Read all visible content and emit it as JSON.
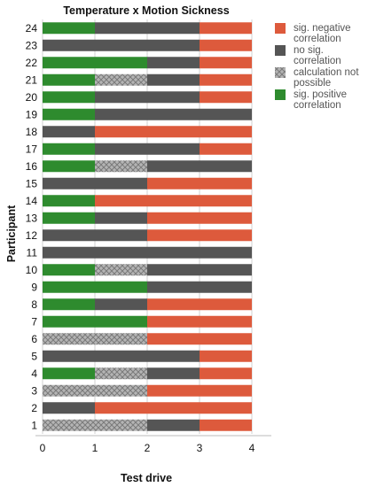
{
  "chart_data": {
    "type": "bar",
    "orientation": "horizontal",
    "stacked": true,
    "title": "Temperature x Motion Sickness",
    "xlabel": "Test drive",
    "ylabel": "Participant",
    "xlim": [
      0,
      4
    ],
    "xticks": [
      "0",
      "1",
      "2",
      "3",
      "4"
    ],
    "grid": "vertical",
    "legend_position": "right",
    "legend": [
      {
        "key": "neg",
        "label_lines": [
          "sig. negative",
          "correlation"
        ]
      },
      {
        "key": "nosig",
        "label_lines": [
          "no sig.",
          "correlation"
        ]
      },
      {
        "key": "na",
        "label_lines": [
          "calculation not",
          "possible"
        ]
      },
      {
        "key": "pos",
        "label_lines": [
          "sig. positive",
          "correlation"
        ]
      }
    ],
    "colors": {
      "pos": "#2e8b2e",
      "nosig": "#555555",
      "na": "#a9a9a9",
      "neg": "#dd5a3c"
    },
    "categories": [
      "1",
      "2",
      "3",
      "4",
      "5",
      "6",
      "7",
      "8",
      "9",
      "10",
      "11",
      "12",
      "13",
      "14",
      "15",
      "16",
      "17",
      "18",
      "19",
      "20",
      "21",
      "22",
      "23",
      "24"
    ],
    "rows": [
      [
        "na",
        "na",
        "nosig",
        "neg"
      ],
      [
        "nosig",
        "neg",
        "neg",
        "neg"
      ],
      [
        "na",
        "na",
        "neg",
        "neg"
      ],
      [
        "pos",
        "na",
        "nosig",
        "neg"
      ],
      [
        "nosig",
        "nosig",
        "nosig",
        "neg"
      ],
      [
        "na",
        "na",
        "neg",
        "neg"
      ],
      [
        "pos",
        "pos",
        "neg",
        "neg"
      ],
      [
        "pos",
        "nosig",
        "neg",
        "neg"
      ],
      [
        "pos",
        "pos",
        "nosig",
        "nosig"
      ],
      [
        "pos",
        "na",
        "nosig",
        "nosig"
      ],
      [
        "nosig",
        "nosig",
        "nosig",
        "nosig"
      ],
      [
        "nosig",
        "nosig",
        "neg",
        "neg"
      ],
      [
        "pos",
        "nosig",
        "neg",
        "neg"
      ],
      [
        "pos",
        "neg",
        "neg",
        "neg"
      ],
      [
        "nosig",
        "nosig",
        "neg",
        "neg"
      ],
      [
        "pos",
        "na",
        "nosig",
        "nosig"
      ],
      [
        "pos",
        "nosig",
        "nosig",
        "neg"
      ],
      [
        "nosig",
        "neg",
        "neg",
        "neg"
      ],
      [
        "pos",
        "nosig",
        "nosig",
        "nosig"
      ],
      [
        "pos",
        "nosig",
        "nosig",
        "neg"
      ],
      [
        "pos",
        "na",
        "nosig",
        "neg"
      ],
      [
        "pos",
        "pos",
        "nosig",
        "neg"
      ],
      [
        "nosig",
        "nosig",
        "nosig",
        "neg"
      ],
      [
        "pos",
        "nosig",
        "nosig",
        "neg"
      ]
    ]
  }
}
